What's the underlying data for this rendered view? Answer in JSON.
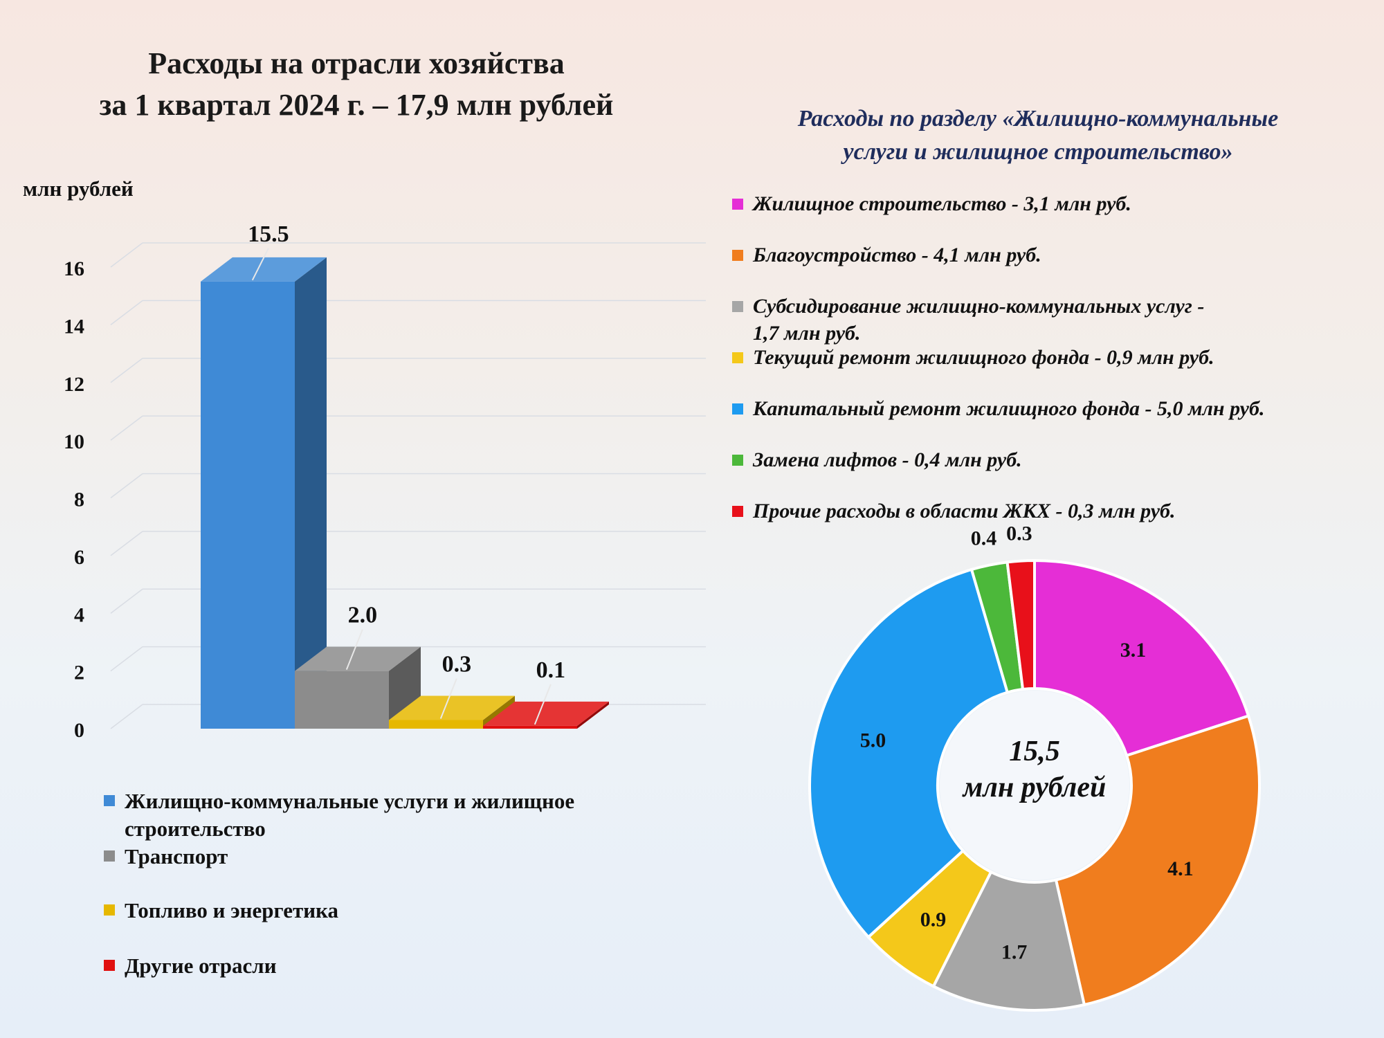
{
  "page": {
    "title": "Расходы на отрасли хозяйства за 1 квартал 2024 г. – 17,9 млн рублей",
    "title_line1": "Расходы на отрасли хозяйства",
    "title_line2": "за 1 квартал 2024 г. – 17,9 млн рублей",
    "subtitle_line1": "Расходы по разделу «Жилищно-коммунальные",
    "subtitle_line2": "услуги и жилищное строительство»"
  },
  "chart_data": [
    {
      "type": "bar",
      "title": "Расходы на отрасли хозяйства за 1 квартал 2024 г. – 17,9 млн рублей",
      "ylabel": "млн рублей",
      "ylim": [
        0,
        16
      ],
      "yticks": [
        "0",
        "2",
        "4",
        "6",
        "8",
        "10",
        "12",
        "14",
        "16"
      ],
      "grid": true,
      "legend_position": "bottom",
      "categories": [
        "Жилищно-коммунальные услуги и жилищное строительство",
        "Транспорт",
        "Топливо и энергетика",
        "Другие отрасли"
      ],
      "values": [
        15.5,
        2.0,
        0.3,
        0.1
      ],
      "value_labels": [
        "15.5",
        "2.0",
        "0.3",
        "0.1"
      ],
      "colors": [
        "#3f8ad6",
        "#8c8c8c",
        "#e6b800",
        "#e01010"
      ]
    },
    {
      "type": "pie",
      "title": "Расходы по разделу «Жилищно-коммунальные услуги и жилищное строительство»",
      "center_label_1": "15,5",
      "center_label_2": "млн рублей",
      "legend_position": "top",
      "slices": [
        {
          "legend": "Жилищное строительство - 3,1 млн руб.",
          "value": 3.1,
          "label": "3.1",
          "color": "#e52ed6"
        },
        {
          "legend": "Благоустройство - 4,1 млн руб.",
          "value": 4.1,
          "label": "4.1",
          "color": "#f07d1e"
        },
        {
          "legend": "Субсидирование жилищно-коммунальных услуг - 1,7 млн руб.",
          "legend_line1": "Субсидирование жилищно-коммунальных услуг -",
          "legend_line2": "1,7 млн руб.",
          "value": 1.7,
          "label": "1.7",
          "color": "#a6a6a6"
        },
        {
          "legend": "Текущий ремонт жилищного фонда - 0,9 млн руб.",
          "value": 0.9,
          "label": "0.9",
          "color": "#f4c81a"
        },
        {
          "legend": "Капитальный ремонт жилищного фонда - 5,0 млн руб.",
          "value": 5.0,
          "label": "5.0",
          "color": "#1e9bf0"
        },
        {
          "legend": "Замена лифтов - 0,4 млн руб.",
          "value": 0.4,
          "label": "0.4",
          "color": "#4cb83a"
        },
        {
          "legend": "Прочие расходы в области ЖКХ - 0,3 млн руб.",
          "value": 0.3,
          "label": "0.3",
          "color": "#e8101a"
        }
      ]
    }
  ]
}
